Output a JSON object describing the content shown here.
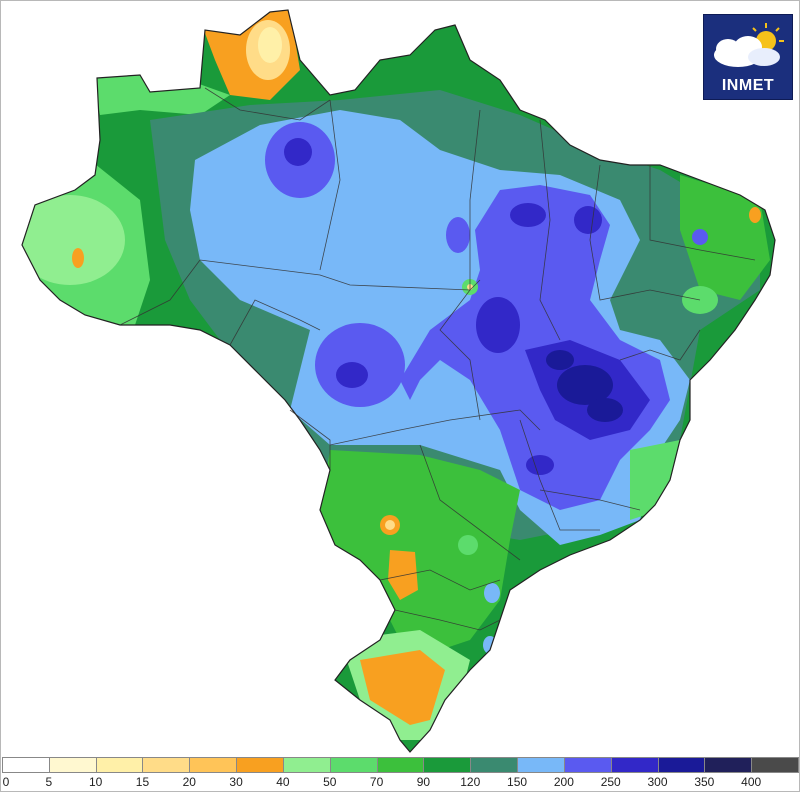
{
  "logo": {
    "text": "INMET"
  },
  "legend": {
    "classes": [
      {
        "color": "#ffffff",
        "label": "0"
      },
      {
        "color": "#fff8d0",
        "label": "5"
      },
      {
        "color": "#fff0a8",
        "label": "10"
      },
      {
        "color": "#ffdc88",
        "label": "15"
      },
      {
        "color": "#ffc458",
        "label": "20"
      },
      {
        "color": "#f8a020",
        "label": "30"
      },
      {
        "color": "#90ee90",
        "label": "40"
      },
      {
        "color": "#5cdc6c",
        "label": "50"
      },
      {
        "color": "#3cc03c",
        "label": "70"
      },
      {
        "color": "#1a9a3a",
        "label": "90"
      },
      {
        "color": "#3a8a70",
        "label": "120"
      },
      {
        "color": "#78b8f8",
        "label": "150"
      },
      {
        "color": "#5a5af0",
        "label": "200"
      },
      {
        "color": "#3228c8",
        "label": "250"
      },
      {
        "color": "#1a1a98",
        "label": "300"
      },
      {
        "color": "#20205a",
        "label": "350"
      },
      {
        "color": "#4a4a4a",
        "label": "400"
      }
    ]
  }
}
